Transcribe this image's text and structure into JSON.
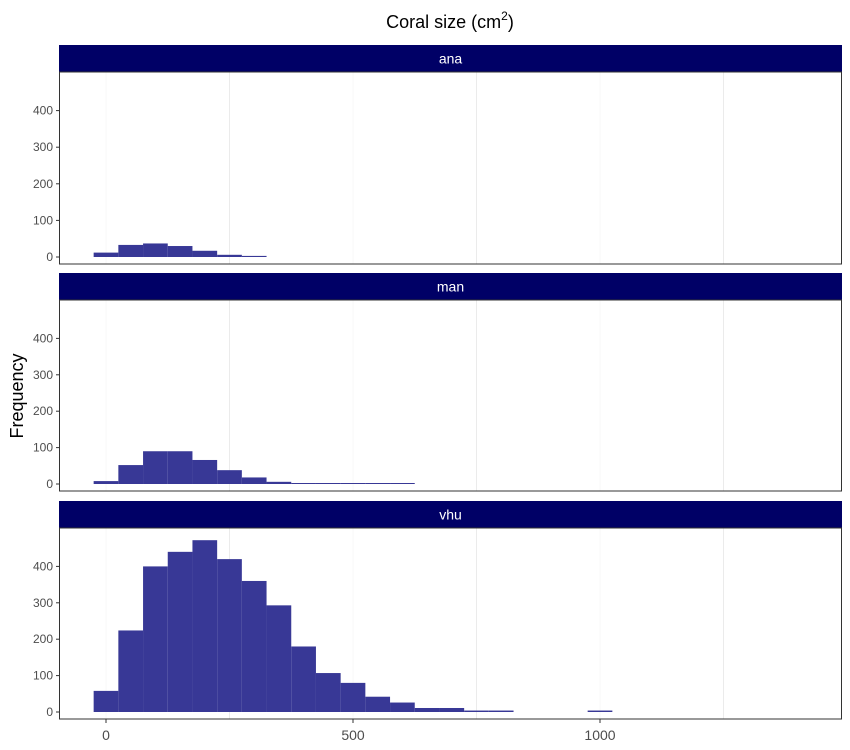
{
  "chart_data": {
    "type": "bar",
    "title": "Coral size (cm",
    "title_superscript": "2",
    "title_suffix": ")",
    "xlabel": "",
    "ylabel": "Frequency",
    "xlim": [
      -100,
      1490
    ],
    "ylim": [
      0,
      500
    ],
    "x_ticks": [
      0,
      500,
      1000
    ],
    "y_ticks": [
      0,
      100,
      200,
      300,
      400
    ],
    "bin_width": 50,
    "grid": "vertical",
    "facets": [
      "ana",
      "man",
      "vhu"
    ],
    "series": [
      {
        "name": "ana",
        "bins": [
          {
            "x0": -25,
            "x1": 25,
            "count": 12
          },
          {
            "x0": 25,
            "x1": 75,
            "count": 33
          },
          {
            "x0": 75,
            "x1": 125,
            "count": 37
          },
          {
            "x0": 125,
            "x1": 175,
            "count": 30
          },
          {
            "x0": 175,
            "x1": 225,
            "count": 17
          },
          {
            "x0": 225,
            "x1": 275,
            "count": 6
          },
          {
            "x0": 275,
            "x1": 325,
            "count": 3
          }
        ]
      },
      {
        "name": "man",
        "bins": [
          {
            "x0": -25,
            "x1": 25,
            "count": 8
          },
          {
            "x0": 25,
            "x1": 75,
            "count": 52
          },
          {
            "x0": 75,
            "x1": 125,
            "count": 90
          },
          {
            "x0": 125,
            "x1": 175,
            "count": 90
          },
          {
            "x0": 175,
            "x1": 225,
            "count": 66
          },
          {
            "x0": 225,
            "x1": 275,
            "count": 38
          },
          {
            "x0": 275,
            "x1": 325,
            "count": 18
          },
          {
            "x0": 325,
            "x1": 375,
            "count": 6
          },
          {
            "x0": 375,
            "x1": 425,
            "count": 2
          },
          {
            "x0": 425,
            "x1": 475,
            "count": 2
          },
          {
            "x0": 475,
            "x1": 525,
            "count": 2
          },
          {
            "x0": 525,
            "x1": 575,
            "count": 2
          },
          {
            "x0": 575,
            "x1": 625,
            "count": 2
          }
        ]
      },
      {
        "name": "vhu",
        "bins": [
          {
            "x0": -25,
            "x1": 25,
            "count": 58
          },
          {
            "x0": 25,
            "x1": 75,
            "count": 224
          },
          {
            "x0": 75,
            "x1": 125,
            "count": 400
          },
          {
            "x0": 125,
            "x1": 175,
            "count": 440
          },
          {
            "x0": 175,
            "x1": 225,
            "count": 472
          },
          {
            "x0": 225,
            "x1": 275,
            "count": 420
          },
          {
            "x0": 275,
            "x1": 325,
            "count": 360
          },
          {
            "x0": 325,
            "x1": 375,
            "count": 293
          },
          {
            "x0": 375,
            "x1": 425,
            "count": 180
          },
          {
            "x0": 425,
            "x1": 475,
            "count": 107
          },
          {
            "x0": 475,
            "x1": 525,
            "count": 80
          },
          {
            "x0": 525,
            "x1": 575,
            "count": 42
          },
          {
            "x0": 575,
            "x1": 625,
            "count": 26
          },
          {
            "x0": 625,
            "x1": 675,
            "count": 11
          },
          {
            "x0": 675,
            "x1": 725,
            "count": 11
          },
          {
            "x0": 725,
            "x1": 775,
            "count": 4
          },
          {
            "x0": 775,
            "x1": 825,
            "count": 4
          },
          {
            "x0": 975,
            "x1": 1025,
            "count": 4
          }
        ]
      }
    ]
  },
  "colors": {
    "bar": "#383896",
    "strip": "#000066",
    "strip_text": "#ffffff",
    "panel_border": "#333333",
    "grid": "#ebebeb",
    "tick_text": "#4d4d4d",
    "background": "#ffffff"
  }
}
